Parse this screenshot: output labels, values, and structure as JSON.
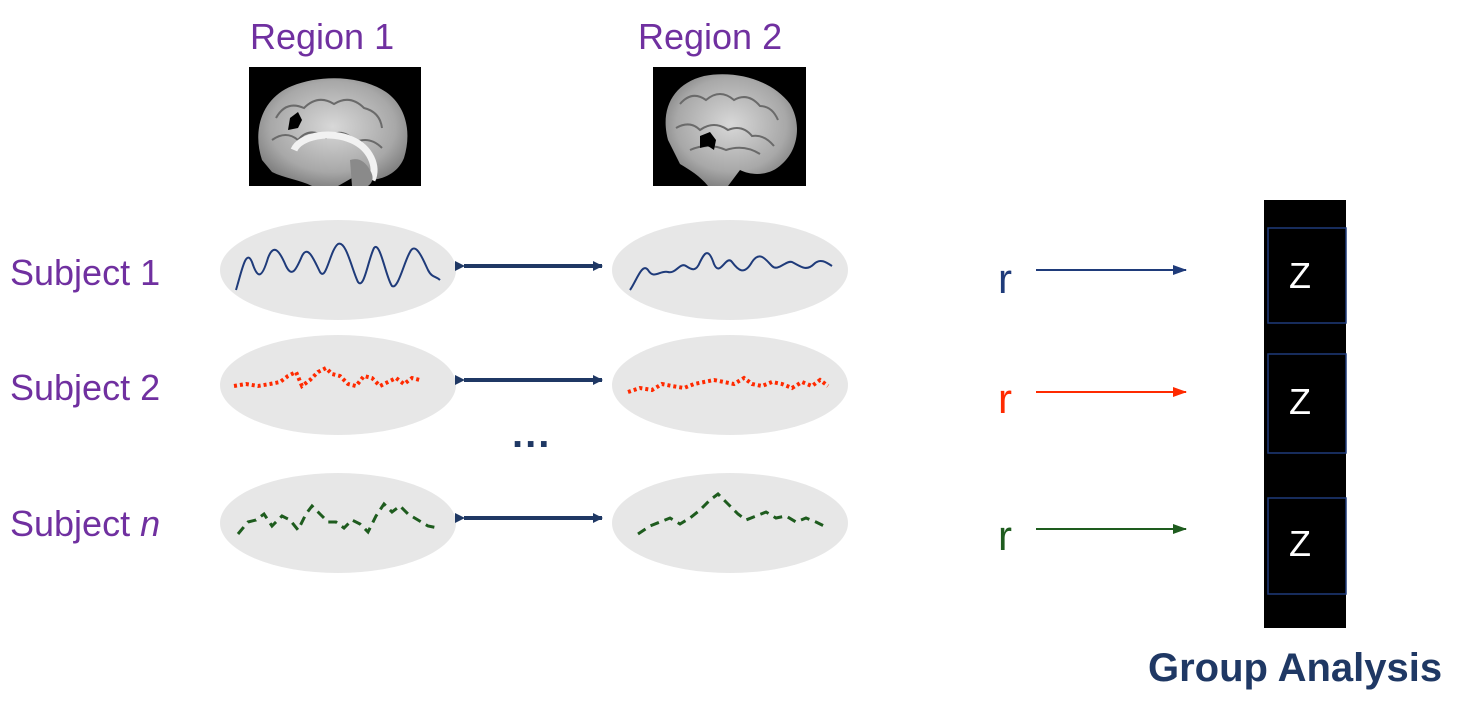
{
  "regions": [
    {
      "label": "Region 1"
    },
    {
      "label": "Region 2"
    }
  ],
  "subjects": [
    {
      "prefix": "Subject ",
      "suffix": "1",
      "color": "#1f3b7a",
      "style": "solid"
    },
    {
      "prefix": "Subject ",
      "suffix": "2",
      "color": "#ff2a00",
      "style": "dotted"
    },
    {
      "prefix": "Subject ",
      "suffix": "n",
      "color": "#1e5c1e",
      "style": "dashed"
    }
  ],
  "ellipsis": "...",
  "correlation_symbol": "r",
  "group": {
    "z_label": "Z",
    "title": "Group Analysis"
  },
  "colors": {
    "label_purple": "#7030a0",
    "arrow_navy": "#1f3864",
    "ellipse_fill": "#e7e7e7",
    "column_fill": "#000000",
    "cell_border": "#1f3b7a"
  }
}
